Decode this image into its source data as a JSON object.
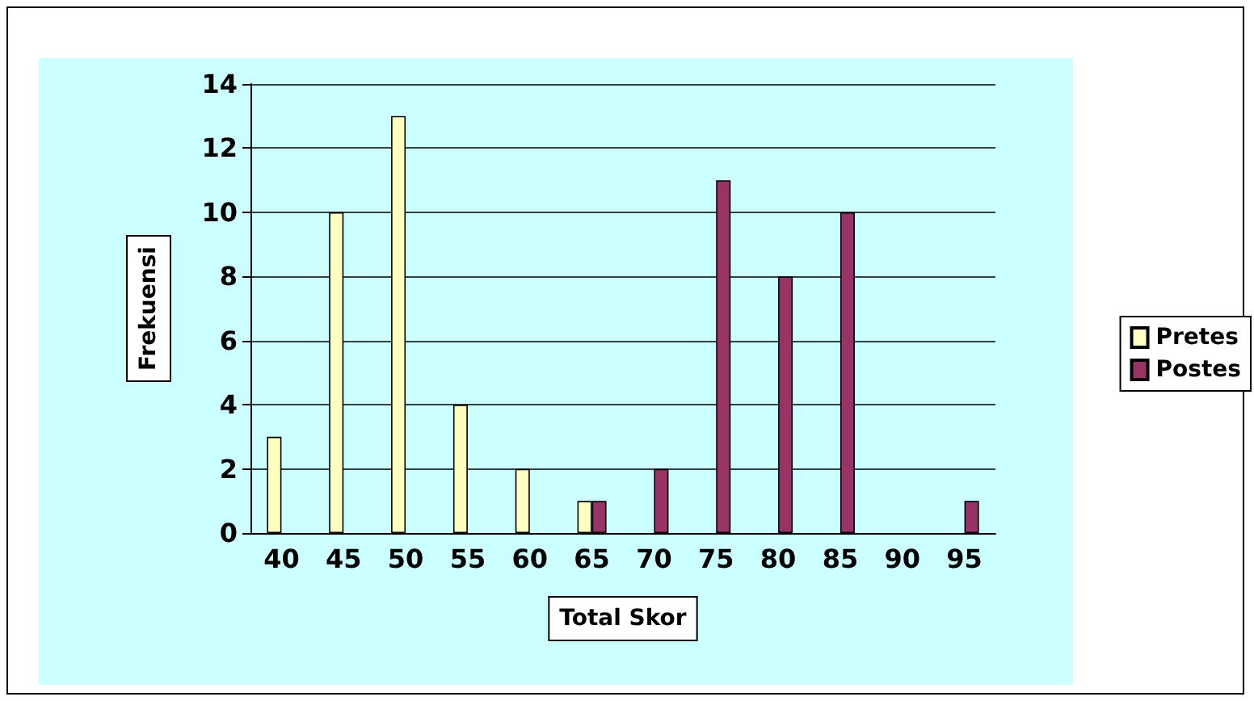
{
  "chart_data": {
    "type": "bar",
    "xlabel": "Total Skor",
    "ylabel": "Frekuensi",
    "categories": [
      "40",
      "45",
      "50",
      "55",
      "60",
      "65",
      "70",
      "75",
      "80",
      "85",
      "90",
      "95"
    ],
    "series": [
      {
        "name": "Pretes",
        "color": "#ffffc0",
        "values": [
          3,
          10,
          13,
          4,
          2,
          1,
          0,
          0,
          0,
          0,
          0,
          0
        ]
      },
      {
        "name": "Postes",
        "color": "#993366",
        "values": [
          0,
          0,
          0,
          0,
          0,
          1,
          2,
          11,
          8,
          10,
          0,
          1
        ]
      }
    ],
    "ylim": [
      0,
      14
    ],
    "yticks": [
      0,
      2,
      4,
      6,
      8,
      10,
      12,
      14
    ],
    "grid": "y",
    "legend": "right"
  }
}
